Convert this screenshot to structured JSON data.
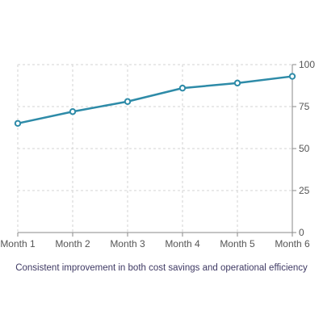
{
  "chart_data": {
    "type": "line",
    "categories": [
      "Month 1",
      "Month 2",
      "Month 3",
      "Month 4",
      "Month 5",
      "Month 6"
    ],
    "series": [
      {
        "values": [
          65,
          72,
          78,
          86,
          89,
          93
        ],
        "color": "#2e8ba8"
      }
    ],
    "y_axis_side": "right",
    "ylim": [
      0,
      100
    ],
    "yticks": [
      0,
      25,
      50,
      75,
      100
    ],
    "grid": true,
    "grid_style": "dashed",
    "markers": "hollow-circle"
  },
  "caption": "Consistent improvement in both cost savings and operational efficiency",
  "colors": {
    "series": "#2e8ba8",
    "grid": "#d3d3d3",
    "axis": "#888888",
    "tick_label": "#555555",
    "caption": "#3f3a64"
  }
}
